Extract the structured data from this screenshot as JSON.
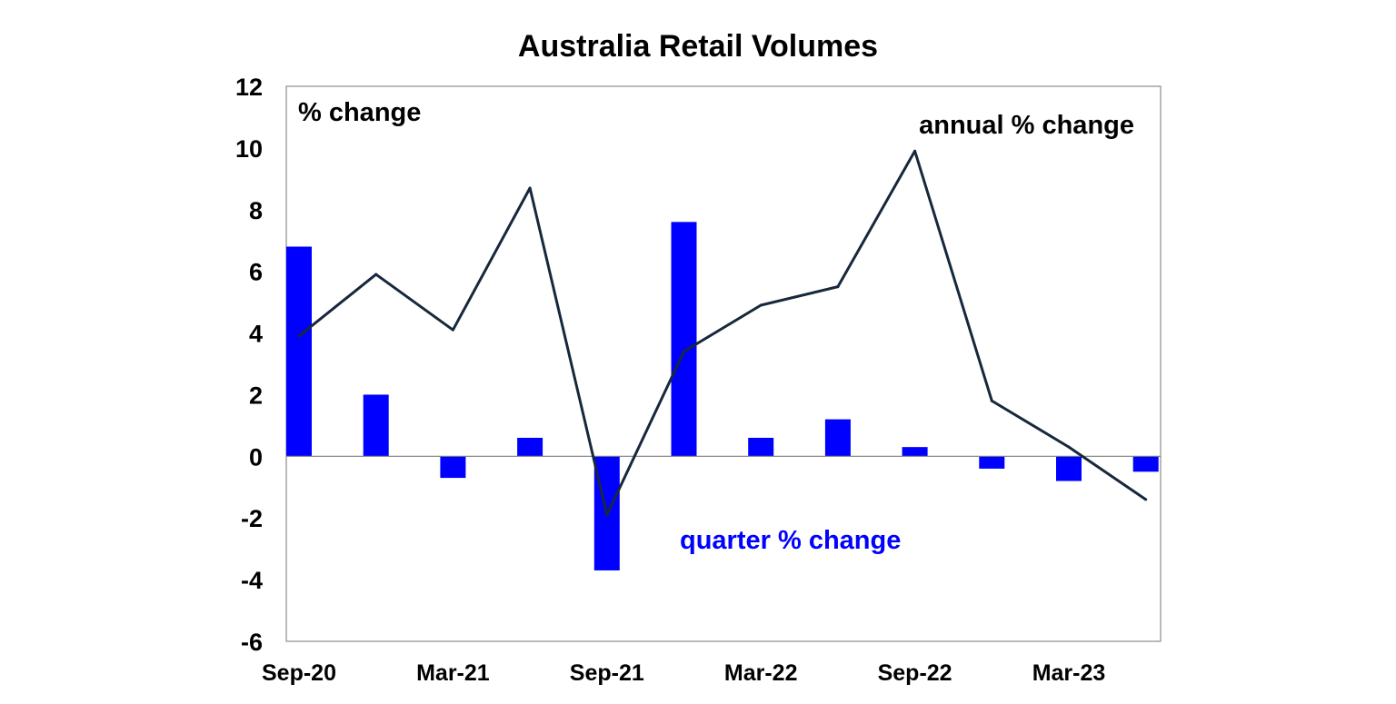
{
  "chart_data": {
    "type": "bar+line",
    "title": "Australia Retail Volumes",
    "ylabel": "% change",
    "ylim": [
      -6,
      12
    ],
    "yticks": [
      -6,
      -4,
      -2,
      0,
      2,
      4,
      6,
      8,
      10,
      12
    ],
    "categories": [
      "Sep-20",
      "Dec-20",
      "Mar-21",
      "Jun-21",
      "Sep-21",
      "Dec-21",
      "Mar-22",
      "Jun-22",
      "Sep-22",
      "Dec-22",
      "Mar-23",
      "Jun-23"
    ],
    "x_tick_labels": [
      "Sep-20",
      "Mar-21",
      "Sep-21",
      "Mar-22",
      "Sep-22",
      "Mar-23"
    ],
    "series": [
      {
        "name": "quarter % change",
        "kind": "bar",
        "color": "#0000FF",
        "values": [
          6.8,
          2.0,
          -0.7,
          0.6,
          -3.7,
          7.6,
          0.6,
          1.2,
          0.3,
          -0.4,
          -0.8,
          -0.5
        ]
      },
      {
        "name": "annual % change",
        "kind": "line",
        "color": "#17283C",
        "values": [
          3.9,
          5.9,
          4.1,
          8.7,
          -1.9,
          3.4,
          4.9,
          5.5,
          9.9,
          1.8,
          0.3,
          -1.4
        ]
      }
    ],
    "annotations": {
      "axis_label": "% change",
      "line_label": "annual % change",
      "bar_label": "quarter % change"
    },
    "grid": false
  }
}
